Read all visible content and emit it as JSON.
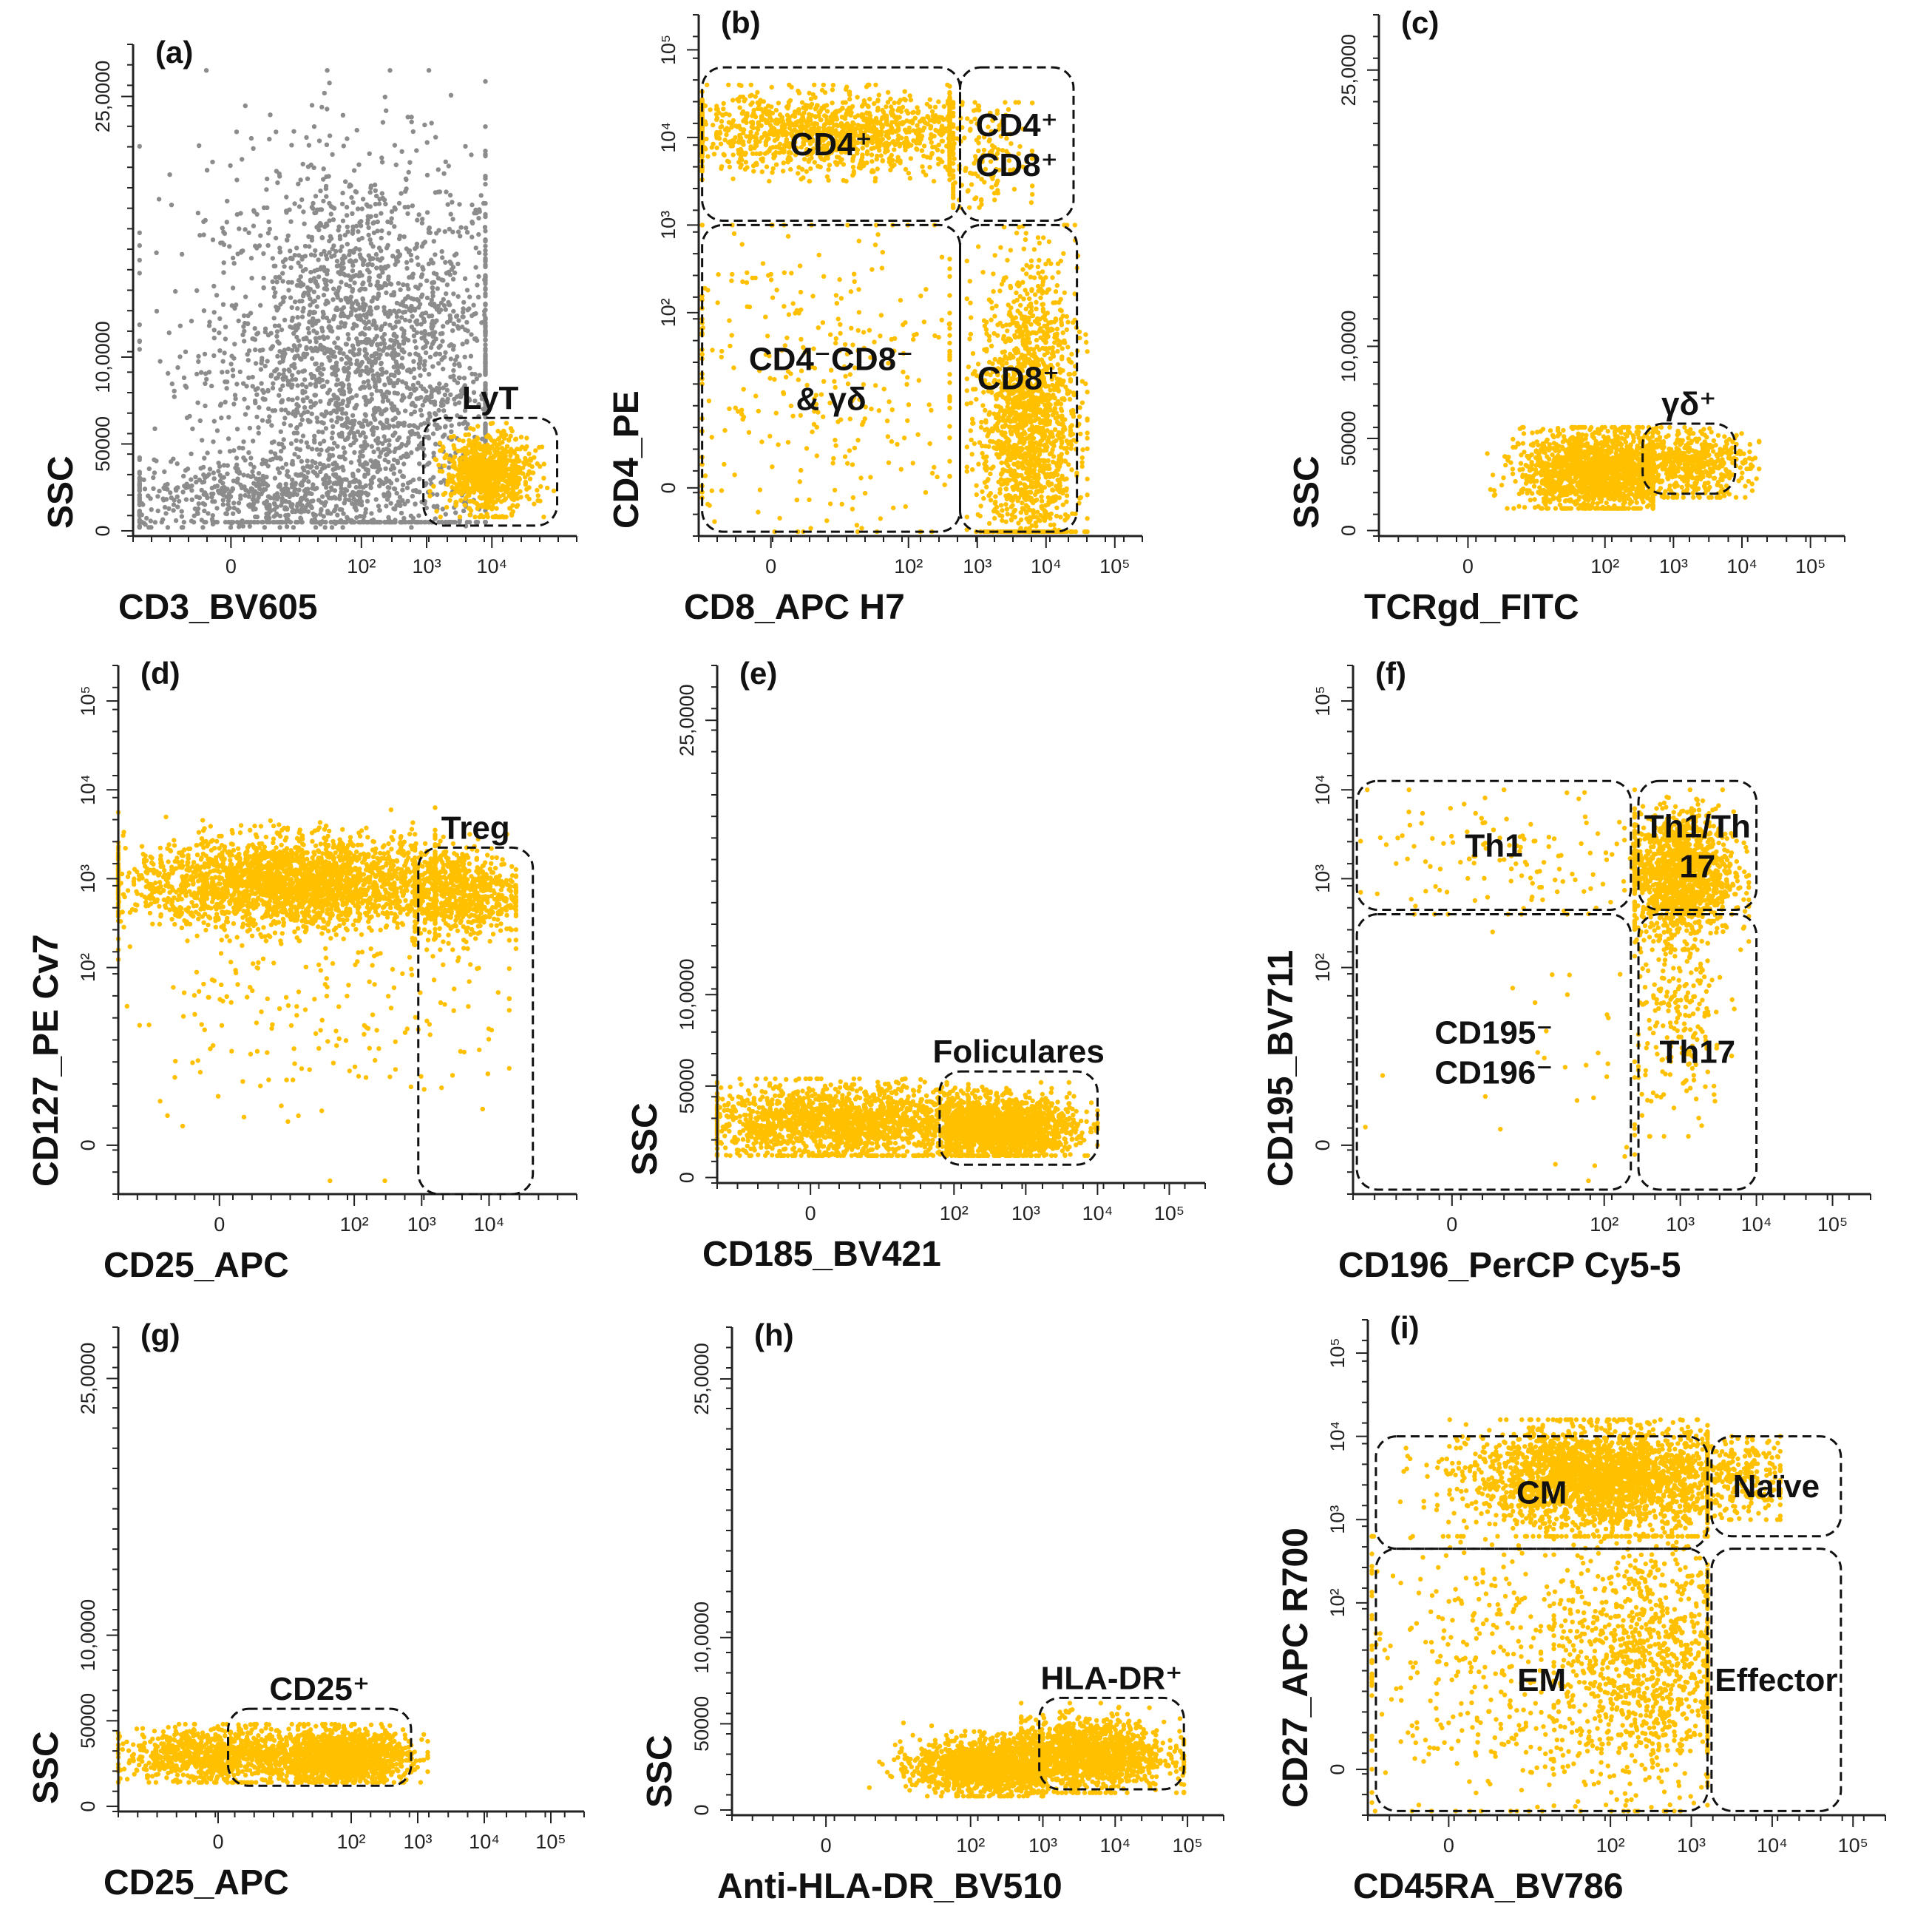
{
  "colors": {
    "gated": "#FFC000",
    "ungated": "#8C8C8C",
    "ink": "#111111"
  },
  "chart_data": [
    {
      "type": "scatter",
      "panel_label": "(a)",
      "xlabel": "CD3_BV605",
      "ylabel": "SSC",
      "x_ticks": [
        [
          "0",
          0
        ],
        [
          "10²",
          2
        ],
        [
          "10³",
          3
        ],
        [
          "10⁴",
          4
        ]
      ],
      "y_ticks": [
        [
          "0",
          0
        ],
        [
          "50000",
          50000
        ],
        [
          "10,0000",
          100000
        ],
        [
          "25,0000",
          250000
        ]
      ],
      "xlim": [
        -1.5,
        5.3
      ],
      "ylim": [
        -3000,
        280000
      ],
      "clusters": [
        {
          "color": "ungated",
          "n": 2600,
          "cx": 2.0,
          "cy": 95000,
          "sx": 1.2,
          "sy": 60000,
          "xmin": -1.4,
          "xmax": 3.9,
          "ymin": 5000,
          "ymax": 265000
        },
        {
          "color": "ungated",
          "n": 500,
          "cx": 0.5,
          "cy": 20000,
          "sx": 1.3,
          "sy": 10000,
          "xmin": -1.4,
          "xmax": 3.6,
          "ymin": 2000,
          "ymax": 60000
        },
        {
          "color": "gated",
          "n": 800,
          "cx": 3.95,
          "cy": 33000,
          "sx": 0.33,
          "sy": 11000,
          "xmin": 3.05,
          "xmax": 4.95,
          "ymin": 8000,
          "ymax": 62000
        }
      ],
      "gates": [
        {
          "label": "LyT",
          "x": [
            2.95,
            5.0
          ],
          "y": [
            3000,
            65000
          ],
          "label_pos": "top"
        }
      ]
    },
    {
      "type": "scatter",
      "panel_label": "(b)",
      "xlabel": "CD8_APC H7",
      "ylabel": "CD4_PE",
      "x_ticks": [
        [
          "0",
          0
        ],
        [
          "10²",
          2
        ],
        [
          "10³",
          3
        ],
        [
          "10⁴",
          4
        ],
        [
          "10⁵",
          5
        ]
      ],
      "y_ticks": [
        [
          "0",
          0
        ],
        [
          "10²",
          2
        ],
        [
          "10³",
          3
        ],
        [
          "10⁴",
          4
        ],
        [
          "10⁵",
          5
        ]
      ],
      "xlim": [
        -1.05,
        5.4
      ],
      "ylim": [
        -0.55,
        5.4
      ],
      "clusters": [
        {
          "color": "gated",
          "n": 1300,
          "cx": 1.0,
          "cy": 4.05,
          "sx": 1.3,
          "sy": 0.22,
          "xmin": -1.0,
          "xmax": 2.6,
          "ymin": 3.5,
          "ymax": 4.6
        },
        {
          "color": "gated",
          "n": 160,
          "cx": 3.0,
          "cy": 3.8,
          "sx": 0.45,
          "sy": 0.35,
          "xmin": 2.65,
          "xmax": 3.8,
          "ymin": 3.2,
          "ymax": 4.4
        },
        {
          "color": "gated",
          "n": 320,
          "cx": 0.8,
          "cy": 1.3,
          "sx": 1.2,
          "sy": 1.0,
          "xmin": -1.0,
          "xmax": 2.6,
          "ymin": -0.5,
          "ymax": 3.0
        },
        {
          "color": "gated",
          "n": 1600,
          "cx": 3.75,
          "cy": 0.8,
          "sx": 0.35,
          "sy": 0.85,
          "xmin": 2.85,
          "xmax": 4.6,
          "ymin": -0.5,
          "ymax": 3.0
        }
      ],
      "gates": [
        {
          "label": "CD4⁺",
          "x": [
            -1.0,
            2.75
          ],
          "y": [
            3.05,
            4.8
          ],
          "label_pos": "center"
        },
        {
          "label": "CD4⁺\nCD8⁺",
          "x": [
            2.75,
            4.4
          ],
          "y": [
            3.05,
            4.8
          ],
          "label_pos": "center"
        },
        {
          "label": "CD4⁻CD8⁻\n& γδ",
          "x": [
            -1.0,
            2.75
          ],
          "y": [
            -0.5,
            3.0
          ],
          "label_pos": "center"
        },
        {
          "label": "CD8⁺",
          "x": [
            2.75,
            4.45
          ],
          "y": [
            -0.5,
            3.0
          ],
          "label_pos": "center"
        }
      ]
    },
    {
      "type": "scatter",
      "panel_label": "(c)",
      "xlabel": "TCRgd_FITC",
      "ylabel": "SSC",
      "x_ticks": [
        [
          "0",
          0
        ],
        [
          "10²",
          2
        ],
        [
          "10³",
          3
        ],
        [
          "10⁴",
          4
        ],
        [
          "10⁵",
          5
        ]
      ],
      "y_ticks": [
        [
          "0",
          0
        ],
        [
          "50000",
          50000
        ],
        [
          "10,0000",
          100000
        ],
        [
          "25,0000",
          250000
        ]
      ],
      "xlim": [
        -1.3,
        5.5
      ],
      "ylim": [
        -3000,
        280000
      ],
      "clusters": [
        {
          "color": "gated",
          "n": 1700,
          "cx": 1.9,
          "cy": 32000,
          "sx": 0.55,
          "sy": 11000,
          "xmin": -0.4,
          "xmax": 2.7,
          "ymin": 12000,
          "ymax": 56000
        },
        {
          "color": "gated",
          "n": 600,
          "cx": 3.2,
          "cy": 36000,
          "sx": 0.45,
          "sy": 9000,
          "xmin": 2.55,
          "xmax": 4.25,
          "ymin": 18000,
          "ymax": 56000
        }
      ],
      "gates": [
        {
          "label": "γδ⁺",
          "x": [
            2.55,
            3.9
          ],
          "y": [
            20000,
            58000
          ],
          "label_pos": "top"
        }
      ]
    },
    {
      "type": "scatter",
      "panel_label": "(d)",
      "xlabel": "CD25_APC",
      "ylabel": "CD127_PE Cv7",
      "x_ticks": [
        [
          "0",
          0
        ],
        [
          "10²",
          2
        ],
        [
          "10³",
          3
        ],
        [
          "10⁴",
          4
        ]
      ],
      "y_ticks": [
        [
          "0",
          0
        ],
        [
          "10²",
          2
        ],
        [
          "10³",
          3
        ],
        [
          "10⁴",
          4
        ],
        [
          "10⁵",
          5
        ]
      ],
      "xlim": [
        -1.5,
        5.3
      ],
      "ylim": [
        -0.55,
        5.4
      ],
      "clusters": [
        {
          "color": "gated",
          "n": 2600,
          "cx": 1.1,
          "cy": 2.95,
          "sx": 1.2,
          "sy": 0.25,
          "xmin": -1.5,
          "xmax": 3.2,
          "ymin": 2.3,
          "ymax": 3.8
        },
        {
          "color": "gated",
          "n": 700,
          "cx": 3.55,
          "cy": 2.85,
          "sx": 0.45,
          "sy": 0.25,
          "xmin": 2.9,
          "xmax": 4.4,
          "ymin": 2.2,
          "ymax": 3.5
        },
        {
          "color": "gated",
          "n": 220,
          "cx": 1.5,
          "cy": 1.7,
          "sx": 1.5,
          "sy": 0.7,
          "xmin": -1.5,
          "xmax": 4.3,
          "ymin": -0.4,
          "ymax": 2.6
        }
      ],
      "gates": [
        {
          "label": "Treg",
          "x": [
            2.95,
            4.65
          ],
          "y": [
            -0.55,
            3.35
          ],
          "label_pos": "top"
        }
      ]
    },
    {
      "type": "scatter",
      "panel_label": "(e)",
      "xlabel": "CD185_BV421",
      "ylabel": "SSC",
      "x_ticks": [
        [
          "0",
          0
        ],
        [
          "10²",
          2
        ],
        [
          "10³",
          3
        ],
        [
          "10⁴",
          4
        ],
        [
          "10⁵",
          5
        ]
      ],
      "y_ticks": [
        [
          "0",
          0
        ],
        [
          "50000",
          50000
        ],
        [
          "10,0000",
          100000
        ],
        [
          "25,0000",
          250000
        ]
      ],
      "xlim": [
        -1.3,
        5.5
      ],
      "ylim": [
        -3000,
        280000
      ],
      "clusters": [
        {
          "color": "gated",
          "n": 1800,
          "cx": 0.5,
          "cy": 30000,
          "sx": 1.0,
          "sy": 10000,
          "xmin": -1.3,
          "xmax": 2.2,
          "ymin": 12000,
          "ymax": 54000
        },
        {
          "color": "gated",
          "n": 2000,
          "cx": 2.55,
          "cy": 27000,
          "sx": 0.55,
          "sy": 8000,
          "xmin": 1.9,
          "xmax": 4.0,
          "ymin": 12000,
          "ymax": 52000
        }
      ],
      "gates": [
        {
          "label": "Foliculares",
          "x": [
            1.8,
            4.0
          ],
          "y": [
            7000,
            58000
          ],
          "label_pos": "top"
        }
      ]
    },
    {
      "type": "scatter",
      "panel_label": "(f)",
      "xlabel": "CD196_PerCP Cy5-5",
      "ylabel": "CD195_BV711",
      "x_ticks": [
        [
          "0",
          0
        ],
        [
          "10²",
          2
        ],
        [
          "10³",
          3
        ],
        [
          "10⁴",
          4
        ],
        [
          "10⁵",
          5
        ]
      ],
      "y_ticks": [
        [
          "0",
          0
        ],
        [
          "10²",
          2
        ],
        [
          "10³",
          3
        ],
        [
          "10⁴",
          4
        ],
        [
          "10⁵",
          5
        ]
      ],
      "xlim": [
        -1.3,
        5.5
      ],
      "ylim": [
        -0.55,
        5.4
      ],
      "clusters": [
        {
          "color": "gated",
          "n": 1400,
          "cx": 3.0,
          "cy": 3.05,
          "sx": 0.35,
          "sy": 0.35,
          "xmin": 2.4,
          "xmax": 3.9,
          "ymin": 2.2,
          "ymax": 4.0
        },
        {
          "color": "gated",
          "n": 140,
          "cx": 0.9,
          "cy": 3.2,
          "sx": 1.0,
          "sy": 0.4,
          "xmin": -1.2,
          "xmax": 2.4,
          "ymin": 2.6,
          "ymax": 4.0
        },
        {
          "color": "gated",
          "n": 220,
          "cx": 3.0,
          "cy": 1.4,
          "sx": 0.3,
          "sy": 0.6,
          "xmin": 2.45,
          "xmax": 3.8,
          "ymin": 0.1,
          "ymax": 2.5
        },
        {
          "color": "gated",
          "n": 35,
          "cx": 1.6,
          "cy": 1.0,
          "sx": 1.0,
          "sy": 0.7,
          "xmin": -1.2,
          "xmax": 2.4,
          "ymin": -0.4,
          "ymax": 2.4
        }
      ],
      "gates": [
        {
          "label": "Th1",
          "x": [
            -1.25,
            2.35
          ],
          "y": [
            2.65,
            4.1
          ],
          "label_pos": "center"
        },
        {
          "label": "Th1/Th\n17",
          "x": [
            2.45,
            4.0
          ],
          "y": [
            2.65,
            4.1
          ],
          "label_pos": "center"
        },
        {
          "label": "CD195⁻\nCD196⁻",
          "x": [
            -1.25,
            2.35
          ],
          "y": [
            -0.5,
            2.6
          ],
          "label_pos": "center"
        },
        {
          "label": "Th17",
          "x": [
            2.45,
            4.0
          ],
          "y": [
            -0.5,
            2.6
          ],
          "label_pos": "center"
        }
      ]
    },
    {
      "type": "scatter",
      "panel_label": "(g)",
      "xlabel": "CD25_APC",
      "ylabel": "SSC",
      "x_ticks": [
        [
          "0",
          0
        ],
        [
          "10²",
          2
        ],
        [
          "10³",
          3
        ],
        [
          "10⁴",
          4
        ],
        [
          "10⁵",
          5
        ]
      ],
      "y_ticks": [
        [
          "0",
          0
        ],
        [
          "50000",
          50000
        ],
        [
          "10,0000",
          100000
        ],
        [
          "25,0000",
          250000
        ]
      ],
      "xlim": [
        -1.5,
        5.5
      ],
      "ylim": [
        -3000,
        280000
      ],
      "clusters": [
        {
          "color": "gated",
          "n": 900,
          "cx": 0.0,
          "cy": 30000,
          "sx": 0.7,
          "sy": 8000,
          "xmin": -1.5,
          "xmax": 1.2,
          "ymin": 14000,
          "ymax": 48000
        },
        {
          "color": "gated",
          "n": 1600,
          "cx": 1.85,
          "cy": 29000,
          "sx": 0.5,
          "sy": 7500,
          "xmin": 0.6,
          "xmax": 3.15,
          "ymin": 14000,
          "ymax": 48000
        }
      ],
      "gates": [
        {
          "label": "CD25⁺",
          "x": [
            0.15,
            2.9
          ],
          "y": [
            12000,
            57000
          ],
          "label_pos": "top"
        }
      ]
    },
    {
      "type": "scatter",
      "panel_label": "(h)",
      "xlabel": "Anti-HLA-DR_BV510",
      "ylabel": "SSC",
      "x_ticks": [
        [
          "0",
          0
        ],
        [
          "10²",
          2
        ],
        [
          "10³",
          3
        ],
        [
          "10⁴",
          4
        ],
        [
          "10⁵",
          5
        ]
      ],
      "y_ticks": [
        [
          "0",
          0
        ],
        [
          "50000",
          50000
        ],
        [
          "10,0000",
          100000
        ],
        [
          "25,0000",
          250000
        ]
      ],
      "xlim": [
        -1.3,
        5.5
      ],
      "ylim": [
        -3000,
        280000
      ],
      "clusters": [
        {
          "color": "gated",
          "n": 1500,
          "cx": 2.25,
          "cy": 25000,
          "sx": 0.5,
          "sy": 8000,
          "xmin": 0.6,
          "xmax": 3.0,
          "ymin": 8000,
          "ymax": 55000
        },
        {
          "color": "gated",
          "n": 1500,
          "cx": 3.6,
          "cy": 32000,
          "sx": 0.55,
          "sy": 10000,
          "xmin": 2.7,
          "xmax": 4.95,
          "ymin": 10000,
          "ymax": 62000
        }
      ],
      "gates": [
        {
          "label": "HLA-DR⁺",
          "x": [
            2.95,
            4.95
          ],
          "y": [
            12000,
            65000
          ],
          "label_pos": "top"
        }
      ]
    },
    {
      "type": "scatter",
      "panel_label": "(i)",
      "xlabel": "CD45RA_BV786",
      "ylabel": "CD27_APC R700",
      "x_ticks": [
        [
          "0",
          0
        ],
        [
          "10²",
          2
        ],
        [
          "10³",
          3
        ],
        [
          "10⁴",
          4
        ],
        [
          "10⁵",
          5
        ]
      ],
      "y_ticks": [
        [
          "0",
          0
        ],
        [
          "10²",
          2
        ],
        [
          "10³",
          3
        ],
        [
          "10⁴",
          4
        ],
        [
          "10⁵",
          5
        ]
      ],
      "xlim": [
        -1.0,
        5.4
      ],
      "ylim": [
        -0.55,
        5.4
      ],
      "clusters": [
        {
          "color": "gated",
          "n": 2600,
          "cx": 1.9,
          "cy": 3.5,
          "sx": 0.8,
          "sy": 0.3,
          "xmin": -0.95,
          "xmax": 3.2,
          "ymin": 2.8,
          "ymax": 4.2
        },
        {
          "color": "gated",
          "n": 280,
          "cx": 3.55,
          "cy": 3.5,
          "sx": 0.35,
          "sy": 0.25,
          "xmin": 3.2,
          "xmax": 4.1,
          "ymin": 3.0,
          "ymax": 4.0
        },
        {
          "color": "gated",
          "n": 1000,
          "cx": 2.5,
          "cy": 1.3,
          "sx": 0.55,
          "sy": 0.8,
          "xmin": 1.3,
          "xmax": 3.2,
          "ymin": -0.5,
          "ymax": 2.8
        },
        {
          "color": "gated",
          "n": 450,
          "cx": 0.6,
          "cy": 1.2,
          "sx": 1.0,
          "sy": 0.9,
          "xmin": -0.95,
          "xmax": 3.2,
          "ymin": -0.5,
          "ymax": 2.8
        }
      ],
      "gates": [
        {
          "label": "CM",
          "x": [
            -0.9,
            3.2
          ],
          "y": [
            2.65,
            4.0
          ],
          "label_pos": "center"
        },
        {
          "label": "Naïve",
          "x": [
            3.25,
            4.85
          ],
          "y": [
            2.8,
            4.0
          ],
          "label_pos": "center"
        },
        {
          "label": "EM",
          "x": [
            -0.9,
            3.2
          ],
          "y": [
            -0.5,
            2.65
          ],
          "label_pos": "center"
        },
        {
          "label": "Effector",
          "x": [
            3.25,
            4.85
          ],
          "y": [
            -0.5,
            2.65
          ],
          "label_pos": "center"
        }
      ]
    }
  ]
}
